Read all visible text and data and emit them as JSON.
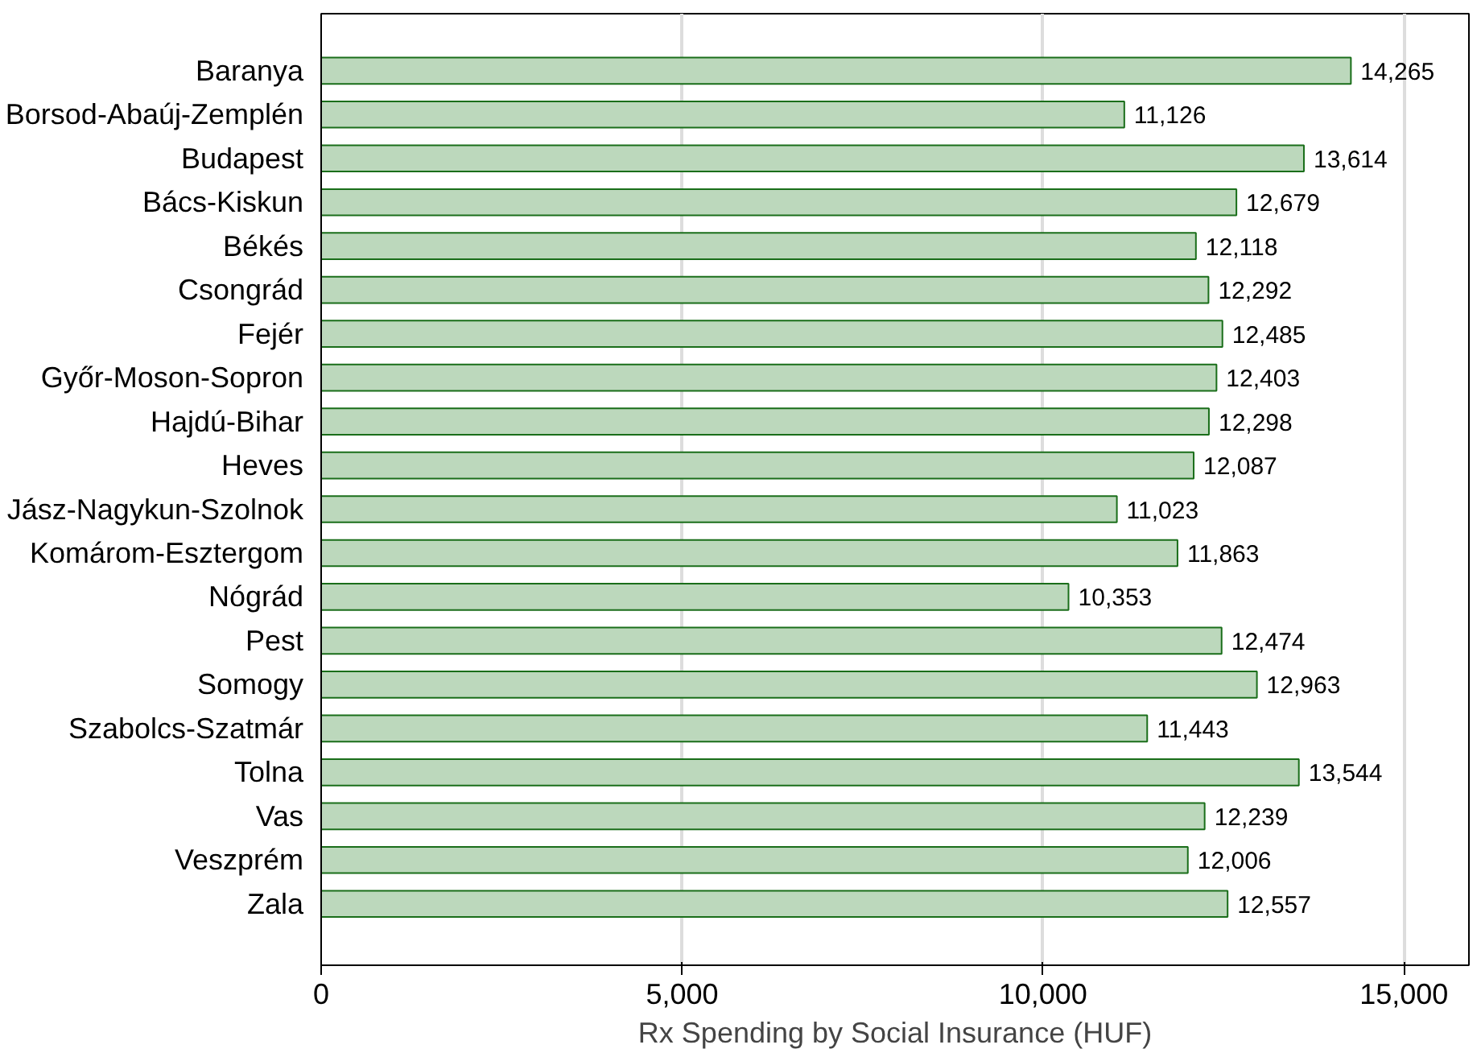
{
  "chart_data": {
    "type": "bar",
    "orientation": "horizontal",
    "xlabel": "Rx Spending by Social Insurance (HUF)",
    "categories": [
      "Baranya",
      "Borsod-Abaúj-Zemplén",
      "Budapest",
      "Bács-Kiskun",
      "Békés",
      "Csongrád",
      "Fejér",
      "Győr-Moson-Sopron",
      "Hajdú-Bihar",
      "Heves",
      "Jász-Nagykun-Szolnok",
      "Komárom-Esztergom",
      "Nógrád",
      "Pest",
      "Somogy",
      "Szabolcs-Szatmár",
      "Tolna",
      "Vas",
      "Veszprém",
      "Zala"
    ],
    "values": [
      14265,
      11126,
      13614,
      12679,
      12118,
      12292,
      12485,
      12403,
      12298,
      12087,
      11023,
      11863,
      10353,
      12474,
      12963,
      11443,
      13544,
      12239,
      12006,
      12557
    ],
    "color": "#bcd8bc",
    "xlim": [
      0,
      15900
    ],
    "xticks": [
      {
        "value": 0,
        "label": "0"
      },
      {
        "value": 5000,
        "label": "5,000"
      },
      {
        "value": 10000,
        "label": "10,000"
      },
      {
        "value": 15000,
        "label": "15,000"
      }
    ],
    "value_labels": [
      "14,265",
      "11,126",
      "13,614",
      "12,679",
      "12,118",
      "12,292",
      "12,485",
      "12,403",
      "12,298",
      "12,087",
      "11,023",
      "11,863",
      "10,353",
      "12,474",
      "12,963",
      "11,443",
      "13,544",
      "12,239",
      "12,006",
      "12,557"
    ],
    "grid": "x"
  }
}
